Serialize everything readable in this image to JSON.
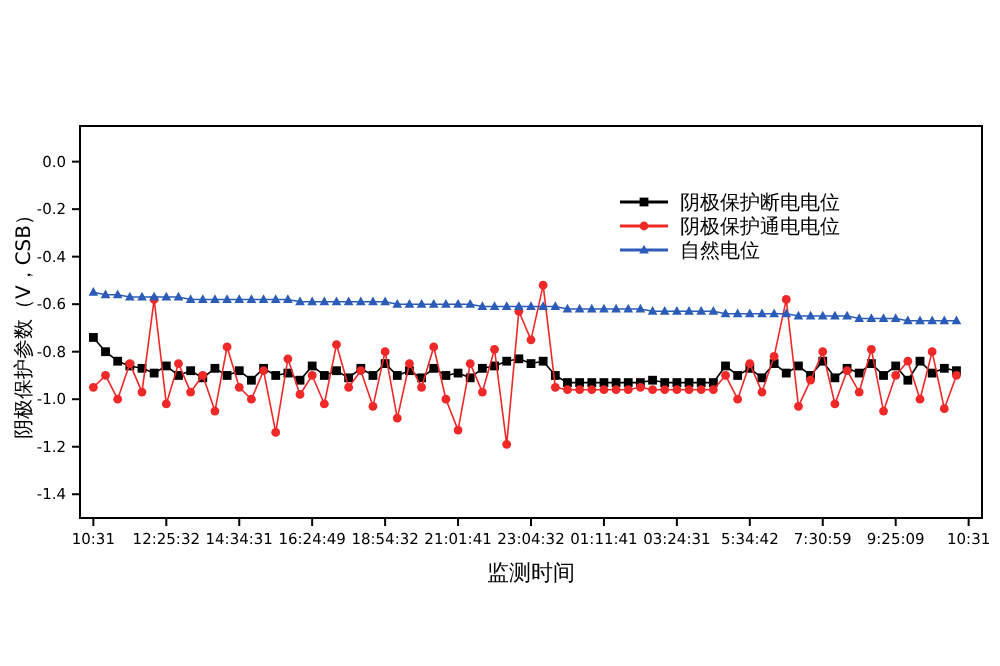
{
  "chart_data": {
    "type": "line",
    "xlabel": "监测时间",
    "ylabel": "阴极保护参数（V，CSB）",
    "categories": [
      "10:31",
      null,
      null,
      null,
      null,
      null,
      "12:25:32",
      null,
      null,
      null,
      null,
      null,
      "14:34:31",
      null,
      null,
      null,
      null,
      null,
      "16:24:49",
      null,
      null,
      null,
      null,
      null,
      "18:54:32",
      null,
      null,
      null,
      null,
      null,
      "21:01:41",
      null,
      null,
      null,
      null,
      null,
      "23:04:32",
      null,
      null,
      null,
      null,
      null,
      "01:11:41",
      null,
      null,
      null,
      null,
      null,
      "03:24:31",
      null,
      null,
      null,
      null,
      null,
      "5:34:42",
      null,
      null,
      null,
      null,
      null,
      "7:30:59",
      null,
      null,
      null,
      null,
      null,
      "9:25:09",
      null,
      null,
      null,
      null,
      null,
      "10:31"
    ],
    "ylim": [
      -1.5,
      0.15
    ],
    "yticks": [
      {
        "value": 0,
        "label": "0.0"
      },
      -0.2,
      -0.4,
      -0.6,
      -0.8,
      {
        "value": -1,
        "label": "-1.0"
      },
      -1.2,
      -1.4
    ],
    "legend": "top right",
    "grid": false,
    "series": [
      {
        "name": "阴极保护断电电位",
        "color": "#000000",
        "marker": "square",
        "values": [
          -0.74,
          -0.8,
          -0.84,
          -0.86,
          -0.87,
          -0.89,
          -0.86,
          -0.9,
          -0.88,
          -0.91,
          -0.87,
          -0.9,
          -0.88,
          -0.92,
          -0.87,
          -0.9,
          -0.89,
          -0.92,
          -0.86,
          -0.9,
          -0.88,
          -0.91,
          -0.87,
          -0.9,
          -0.85,
          -0.9,
          -0.88,
          -0.91,
          -0.87,
          -0.9,
          -0.89,
          -0.91,
          -0.87,
          -0.86,
          -0.84,
          -0.83,
          -0.85,
          -0.84,
          -0.9,
          -0.93,
          -0.93,
          -0.93,
          -0.93,
          -0.93,
          -0.93,
          -0.93,
          -0.92,
          -0.93,
          -0.93,
          -0.93,
          -0.93,
          -0.93,
          -0.86,
          -0.9,
          -0.87,
          -0.91,
          -0.85,
          -0.89,
          -0.86,
          -0.9,
          -0.84,
          -0.91,
          -0.87,
          -0.89,
          -0.85,
          -0.9,
          -0.86,
          -0.92,
          -0.84,
          -0.89,
          -0.87,
          -0.88,
          null
        ]
      },
      {
        "name": "阴极保护通电电位",
        "color": "#f02828",
        "marker": "circle",
        "values": [
          -0.95,
          -0.9,
          -1.0,
          -0.85,
          -0.97,
          -0.58,
          -1.02,
          -0.85,
          -0.97,
          -0.9,
          -1.05,
          -0.78,
          -0.95,
          -1.0,
          -0.88,
          -1.14,
          -0.83,
          -0.98,
          -0.9,
          -1.02,
          -0.77,
          -0.95,
          -0.88,
          -1.03,
          -0.8,
          -1.08,
          -0.85,
          -0.95,
          -0.78,
          -1.0,
          -1.13,
          -0.85,
          -0.97,
          -0.79,
          -1.19,
          -0.63,
          -0.75,
          -0.52,
          -0.95,
          -0.96,
          -0.96,
          -0.96,
          -0.96,
          -0.96,
          -0.96,
          -0.95,
          -0.96,
          -0.96,
          -0.96,
          -0.96,
          -0.96,
          -0.96,
          -0.9,
          -1.0,
          -0.85,
          -0.97,
          -0.82,
          -0.58,
          -1.03,
          -0.92,
          -0.8,
          -1.02,
          -0.88,
          -0.97,
          -0.79,
          -1.05,
          -0.9,
          -0.84,
          -1.0,
          -0.8,
          -1.04,
          -0.9,
          null
        ]
      },
      {
        "name": "自然电位",
        "color": "#2a5cb8",
        "marker": "triangle",
        "values": [
          -0.55,
          -0.56,
          -0.56,
          -0.57,
          -0.57,
          -0.57,
          -0.57,
          -0.57,
          -0.58,
          -0.58,
          -0.58,
          -0.58,
          -0.58,
          -0.58,
          -0.58,
          -0.58,
          -0.58,
          -0.59,
          -0.59,
          -0.59,
          -0.59,
          -0.59,
          -0.59,
          -0.59,
          -0.59,
          -0.6,
          -0.6,
          -0.6,
          -0.6,
          -0.6,
          -0.6,
          -0.6,
          -0.61,
          -0.61,
          -0.61,
          -0.61,
          -0.61,
          -0.61,
          -0.61,
          -0.62,
          -0.62,
          -0.62,
          -0.62,
          -0.62,
          -0.62,
          -0.62,
          -0.63,
          -0.63,
          -0.63,
          -0.63,
          -0.63,
          -0.63,
          -0.64,
          -0.64,
          -0.64,
          -0.64,
          -0.64,
          -0.64,
          -0.65,
          -0.65,
          -0.65,
          -0.65,
          -0.65,
          -0.66,
          -0.66,
          -0.66,
          -0.66,
          -0.67,
          -0.67,
          -0.67,
          -0.67,
          -0.67,
          null
        ]
      }
    ]
  }
}
